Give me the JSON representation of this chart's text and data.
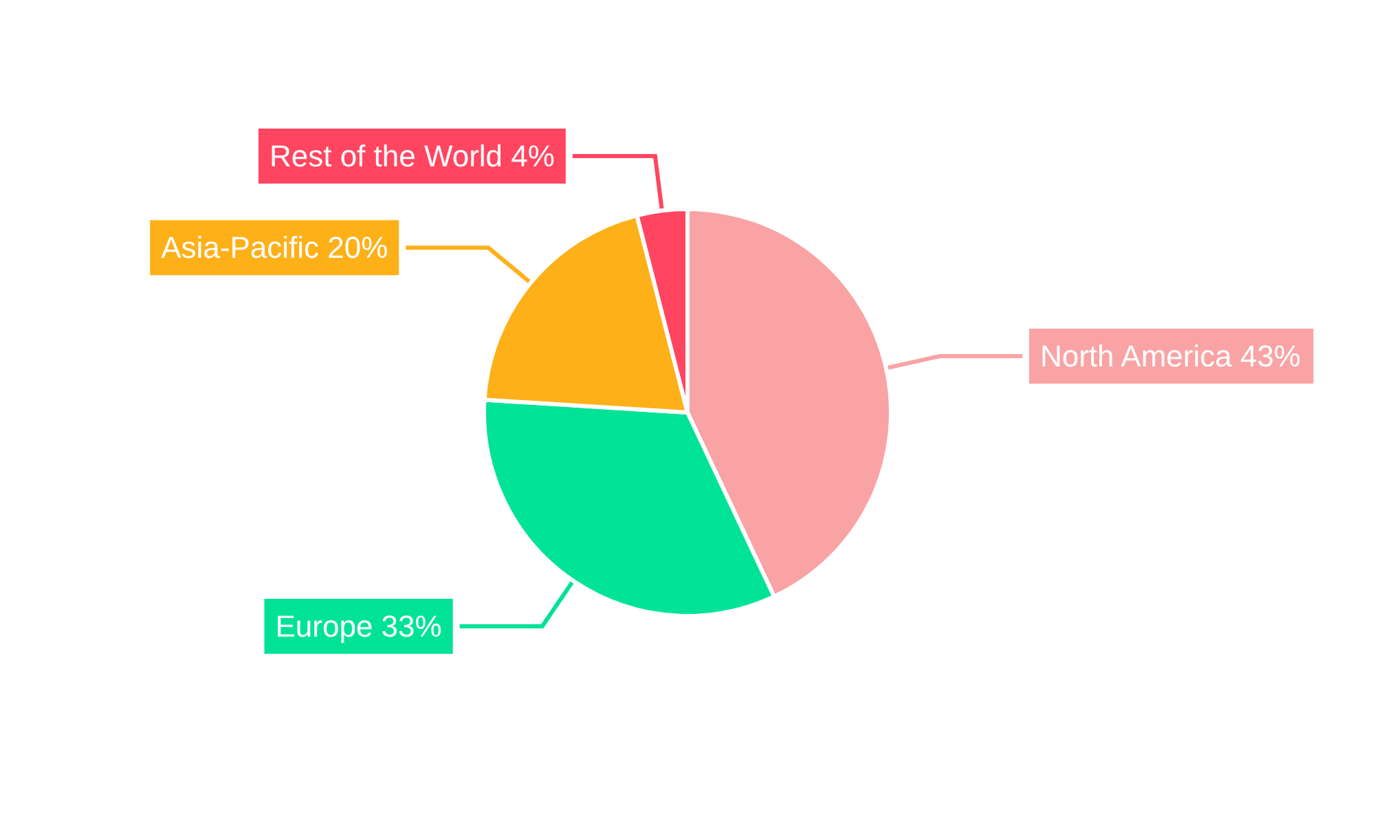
{
  "chart_data": {
    "type": "pie",
    "categories": [
      "North America",
      "Europe",
      "Asia-Pacific",
      "Rest of the World"
    ],
    "values": [
      43,
      33,
      20,
      4
    ],
    "colors": [
      "#f9a3a4",
      "#00e396",
      "#feb019",
      "#ff4560"
    ],
    "value_labels": [
      "43%",
      "33%",
      "20%",
      "4%"
    ],
    "legend": false
  }
}
